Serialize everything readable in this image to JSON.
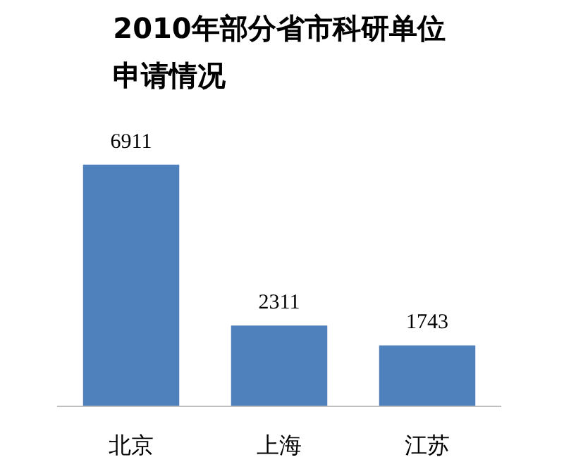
{
  "chart_data": {
    "type": "bar",
    "title": "2010年部分省市科研单位申请情况",
    "categories": [
      "北京",
      "上海",
      "江苏"
    ],
    "values": [
      6911,
      2311,
      1743
    ],
    "color": "#4f81bd",
    "data_labels": true
  }
}
